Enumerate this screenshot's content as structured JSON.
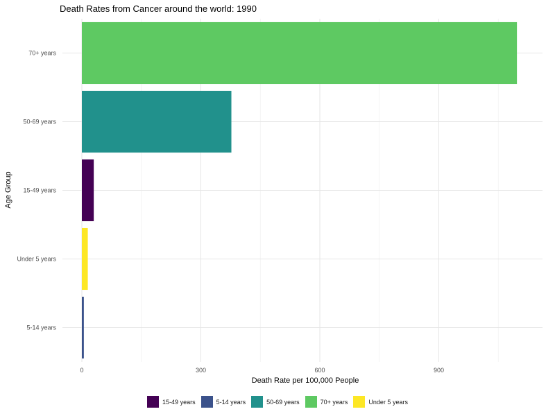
{
  "chart_data": {
    "type": "bar",
    "orientation": "horizontal",
    "title": "Death Rates from Cancer around the world: 1990",
    "xlabel": "Death Rate per 100,000 People",
    "ylabel": "Age Group",
    "xlim": [
      0,
      1150
    ],
    "x_ticks": [
      "0",
      "300",
      "600",
      "900"
    ],
    "grid": true,
    "legend_position": "bottom",
    "categories": [
      "70+ years",
      "50-69 years",
      "15-49 years",
      "Under 5 years",
      "5-14 years"
    ],
    "values": [
      1097,
      377,
      30,
      15,
      5
    ],
    "colors": {
      "70+ years": "#5ec962",
      "50-69 years": "#21918c",
      "15-49 years": "#440154",
      "Under 5 years": "#fde725",
      "5-14 years": "#3b528b"
    },
    "legend": [
      {
        "label": "15-49 years",
        "color": "#440154"
      },
      {
        "label": "5-14 years",
        "color": "#3b528b"
      },
      {
        "label": "50-69 years",
        "color": "#21918c"
      },
      {
        "label": "70+ years",
        "color": "#5ec962"
      },
      {
        "label": "Under 5 years",
        "color": "#fde725"
      }
    ]
  }
}
